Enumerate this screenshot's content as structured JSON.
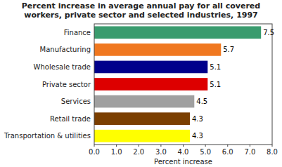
{
  "chart_data": {
    "type": "bar",
    "orientation": "horizontal",
    "title": "Percent increase in average annual pay for all covered\nworkers, private sector and selected industries, 1997",
    "xlabel": "Percent increase",
    "categories": [
      "Finance",
      "Manufacturing",
      "Wholesale trade",
      "Private sector",
      "Services",
      "Retail trade",
      "Transportation & utilities"
    ],
    "values": [
      7.5,
      5.7,
      5.1,
      5.1,
      4.5,
      4.3,
      4.3
    ],
    "colors": [
      "#3a9b6e",
      "#f07820",
      "#00008b",
      "#dd0000",
      "#a0a0a0",
      "#7b3f00",
      "#ffff00"
    ],
    "xlim": [
      0,
      8.0
    ],
    "xticks": [
      {
        "value": 0.0,
        "label": "0.0"
      },
      {
        "value": 1.0,
        "label": "1.0"
      },
      {
        "value": 2.0,
        "label": "2.0"
      },
      {
        "value": 3.0,
        "label": "3.0"
      },
      {
        "value": 4.0,
        "label": "4.0"
      },
      {
        "value": 5.0,
        "label": "5.0"
      },
      {
        "value": 6.0,
        "label": "6.0"
      },
      {
        "value": 7.0,
        "label": "7.0"
      },
      {
        "value": 8.0,
        "label": "8.0"
      }
    ],
    "data_labels": true,
    "grid": false
  }
}
